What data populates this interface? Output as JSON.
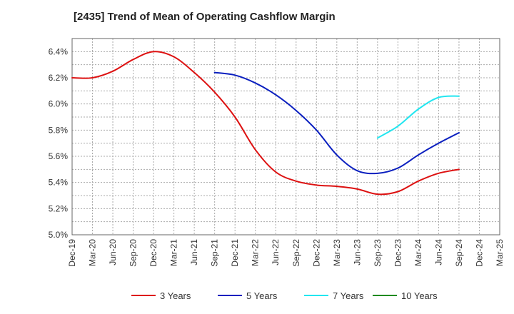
{
  "chart_data": {
    "type": "line",
    "title": "[2435]  Trend of Mean of Operating Cashflow Margin",
    "xlabel": "",
    "ylabel": "",
    "x": [
      "Dec-19",
      "Mar-20",
      "Jun-20",
      "Sep-20",
      "Dec-20",
      "Mar-21",
      "Jun-21",
      "Sep-21",
      "Dec-21",
      "Mar-22",
      "Jun-22",
      "Sep-22",
      "Dec-22",
      "Mar-23",
      "Jun-23",
      "Sep-23",
      "Dec-23",
      "Mar-24",
      "Jun-24",
      "Sep-24",
      "Dec-24",
      "Mar-25"
    ],
    "y_tick_labels": [
      "5.0%",
      "5.2%",
      "5.4%",
      "5.6%",
      "5.8%",
      "6.0%",
      "6.2%",
      "6.4%"
    ],
    "ylim": [
      5.0,
      6.5
    ],
    "grid": true,
    "legend_position": "bottom",
    "series": [
      {
        "name": "3 Years",
        "color": "#dd1111",
        "values": [
          6.2,
          6.2,
          6.25,
          6.34,
          6.4,
          6.36,
          6.24,
          6.09,
          5.9,
          5.65,
          5.48,
          5.41,
          5.38,
          5.37,
          5.35,
          5.31,
          5.33,
          5.41,
          5.47,
          5.5,
          null,
          null
        ]
      },
      {
        "name": "5 Years",
        "color": "#0a1fbf",
        "values": [
          null,
          null,
          null,
          null,
          null,
          null,
          null,
          6.24,
          6.22,
          6.16,
          6.07,
          5.95,
          5.8,
          5.61,
          5.49,
          5.47,
          5.51,
          5.61,
          5.7,
          5.78,
          null,
          null
        ]
      },
      {
        "name": "7 Years",
        "color": "#22e6f0",
        "values": [
          null,
          null,
          null,
          null,
          null,
          null,
          null,
          null,
          null,
          null,
          null,
          null,
          null,
          null,
          null,
          5.74,
          5.83,
          5.96,
          6.05,
          6.06,
          null,
          null
        ]
      },
      {
        "name": "10 Years",
        "color": "#1f8a1f",
        "values": [
          null,
          null,
          null,
          null,
          null,
          null,
          null,
          null,
          null,
          null,
          null,
          null,
          null,
          null,
          null,
          null,
          null,
          null,
          null,
          null,
          null,
          null
        ]
      }
    ]
  }
}
